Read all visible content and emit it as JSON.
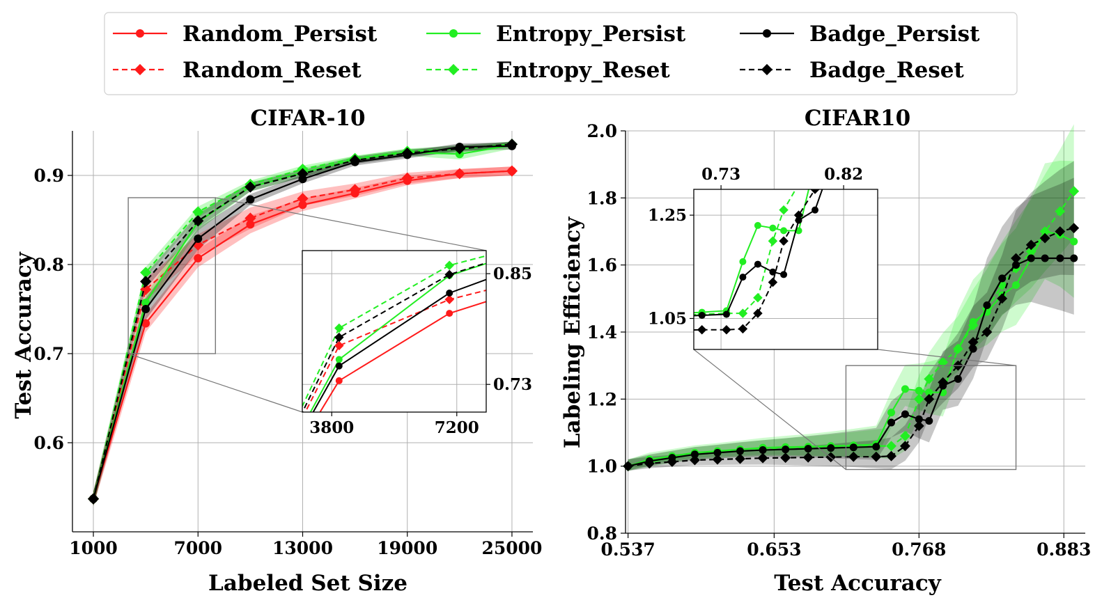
{
  "colors": {
    "random": "#ff1a1a",
    "entropy": "#22ee22",
    "badge": "#000000"
  },
  "legend": {
    "location": "top-center",
    "entries": [
      {
        "label": "Random_Persist",
        "color": "#ff1a1a",
        "dash": "solid",
        "marker": "circle"
      },
      {
        "label": "Entropy_Persist",
        "color": "#22ee22",
        "dash": "solid",
        "marker": "circle"
      },
      {
        "label": "Badge_Persist",
        "color": "#000000",
        "dash": "solid",
        "marker": "circle"
      },
      {
        "label": "Random_Reset",
        "color": "#ff1a1a",
        "dash": "dashed",
        "marker": "diamond"
      },
      {
        "label": "Entropy_Reset",
        "color": "#22ee22",
        "dash": "dashed",
        "marker": "diamond"
      },
      {
        "label": "Badge_Reset",
        "color": "#000000",
        "dash": "dashed",
        "marker": "diamond"
      }
    ]
  },
  "chart_data": [
    {
      "type": "line",
      "title": "CIFAR-10",
      "xlabel": "Labeled Set Size",
      "ylabel": "Test Accuracy",
      "xlim": [
        -200,
        26200
      ],
      "ylim": [
        0.5,
        0.95
      ],
      "xticks": [
        1000,
        7000,
        13000,
        19000,
        25000
      ],
      "yticks": [
        0.6,
        0.7,
        0.8,
        0.9
      ],
      "grid": true,
      "x": [
        1000,
        4000,
        7000,
        10000,
        13000,
        16000,
        19000,
        22000,
        25000
      ],
      "series": [
        {
          "name": "Random_Persist",
          "color": "#ff1a1a",
          "dash": "solid",
          "marker": "circle",
          "values": [
            0.537,
            0.734,
            0.807,
            0.845,
            0.867,
            0.88,
            0.894,
            0.902,
            0.905
          ],
          "band": [
            0.008,
            0.01,
            0.01,
            0.01,
            0.007,
            0.006,
            0.005,
            0.005,
            0.005
          ]
        },
        {
          "name": "Random_Reset",
          "color": "#ff1a1a",
          "dash": "dashed",
          "marker": "diamond",
          "values": [
            0.537,
            0.772,
            0.822,
            0.852,
            0.874,
            0.884,
            0.897,
            0.902,
            0.905
          ],
          "band": [
            0.008,
            0.012,
            0.012,
            0.012,
            0.008,
            0.007,
            0.006,
            0.005,
            0.005
          ]
        },
        {
          "name": "Entropy_Persist",
          "color": "#22ee22",
          "dash": "solid",
          "marker": "circle",
          "values": [
            0.537,
            0.757,
            0.848,
            0.887,
            0.903,
            0.918,
            0.926,
            0.924,
            0.934
          ],
          "band": [
            0.008,
            0.008,
            0.01,
            0.005,
            0.005,
            0.004,
            0.004,
            0.006,
            0.004
          ]
        },
        {
          "name": "Entropy_Reset",
          "color": "#22ee22",
          "dash": "dashed",
          "marker": "diamond",
          "values": [
            0.537,
            0.791,
            0.859,
            0.89,
            0.907,
            0.919,
            0.927,
            0.93,
            0.935
          ],
          "band": [
            0.008,
            0.006,
            0.006,
            0.004,
            0.004,
            0.003,
            0.003,
            0.004,
            0.003
          ]
        },
        {
          "name": "Badge_Persist",
          "color": "#000000",
          "dash": "solid",
          "marker": "circle",
          "values": [
            0.537,
            0.75,
            0.829,
            0.873,
            0.896,
            0.915,
            0.923,
            0.932,
            0.933
          ],
          "band": [
            0.008,
            0.012,
            0.012,
            0.006,
            0.005,
            0.004,
            0.004,
            0.004,
            0.004
          ]
        },
        {
          "name": "Badge_Reset",
          "color": "#000000",
          "dash": "dashed",
          "marker": "diamond",
          "values": [
            0.537,
            0.781,
            0.849,
            0.887,
            0.902,
            0.917,
            0.925,
            0.93,
            0.935
          ],
          "band": [
            0.008,
            0.008,
            0.008,
            0.005,
            0.004,
            0.004,
            0.004,
            0.004,
            0.003
          ]
        }
      ],
      "inset": {
        "xlim": [
          3000,
          8000
        ],
        "ylim": [
          0.7,
          0.875
        ],
        "xticks": [
          3800,
          7200
        ],
        "yticks": [
          0.73,
          0.85
        ],
        "ytick_side": "right"
      }
    },
    {
      "type": "line",
      "title": "CIFAR10",
      "xlabel": "Test Accuracy",
      "ylabel": "Labeling Efficiency",
      "xlim": [
        0.535,
        0.9
      ],
      "ylim": [
        0.8,
        2.0
      ],
      "xticks": [
        0.537,
        0.653,
        0.768,
        0.883
      ],
      "yticks": [
        0.8,
        1.0,
        1.2,
        1.4,
        1.6,
        1.8,
        2.0
      ],
      "grid": true,
      "x": [
        0.537,
        0.554,
        0.572,
        0.59,
        0.608,
        0.626,
        0.644,
        0.662,
        0.68,
        0.698,
        0.716,
        0.734,
        0.746,
        0.757,
        0.768,
        0.776,
        0.787,
        0.799,
        0.811,
        0.822,
        0.834,
        0.845,
        0.857,
        0.868,
        0.88,
        0.891
      ],
      "series": [
        {
          "name": "Entropy_Persist",
          "color": "#22ee22",
          "dash": "solid",
          "marker": "circle",
          "values": [
            1.0,
            1.02,
            1.03,
            1.04,
            1.045,
            1.05,
            1.055,
            1.057,
            1.058,
            1.06,
            1.062,
            1.065,
            1.16,
            1.23,
            1.225,
            1.22,
            1.22,
            1.35,
            1.43,
            1.46,
            1.51,
            1.54,
            1.62,
            1.7,
            1.69,
            1.67
          ]
        },
        {
          "name": "Entropy_Reset",
          "color": "#22ee22",
          "dash": "dashed",
          "marker": "diamond",
          "values": [
            1.0,
            1.012,
            1.025,
            1.035,
            1.04,
            1.045,
            1.05,
            1.052,
            1.054,
            1.056,
            1.058,
            1.06,
            1.06,
            1.09,
            1.2,
            1.26,
            1.31,
            1.35,
            1.42,
            1.47,
            1.54,
            1.59,
            1.64,
            1.7,
            1.76,
            1.82
          ]
        },
        {
          "name": "Badge_Persist",
          "color": "#000000",
          "dash": "solid",
          "marker": "circle",
          "values": [
            1.0,
            1.015,
            1.025,
            1.035,
            1.04,
            1.045,
            1.048,
            1.05,
            1.052,
            1.054,
            1.056,
            1.058,
            1.13,
            1.155,
            1.14,
            1.135,
            1.24,
            1.26,
            1.35,
            1.48,
            1.56,
            1.6,
            1.62,
            1.62,
            1.62,
            1.62
          ]
        },
        {
          "name": "Badge_Reset",
          "color": "#000000",
          "dash": "dashed",
          "marker": "diamond",
          "values": [
            1.0,
            1.008,
            1.013,
            1.018,
            1.02,
            1.022,
            1.024,
            1.025,
            1.026,
            1.027,
            1.028,
            1.028,
            1.03,
            1.06,
            1.12,
            1.2,
            1.25,
            1.3,
            1.37,
            1.4,
            1.5,
            1.62,
            1.66,
            1.68,
            1.7,
            1.71
          ]
        }
      ],
      "inset": {
        "xlim": [
          0.71,
          0.845
        ],
        "ylim": [
          0.99,
          1.3
        ],
        "xticks": [
          0.73,
          0.82
        ],
        "yticks": [
          1.05,
          1.25
        ],
        "ytick_side": "left"
      }
    }
  ]
}
